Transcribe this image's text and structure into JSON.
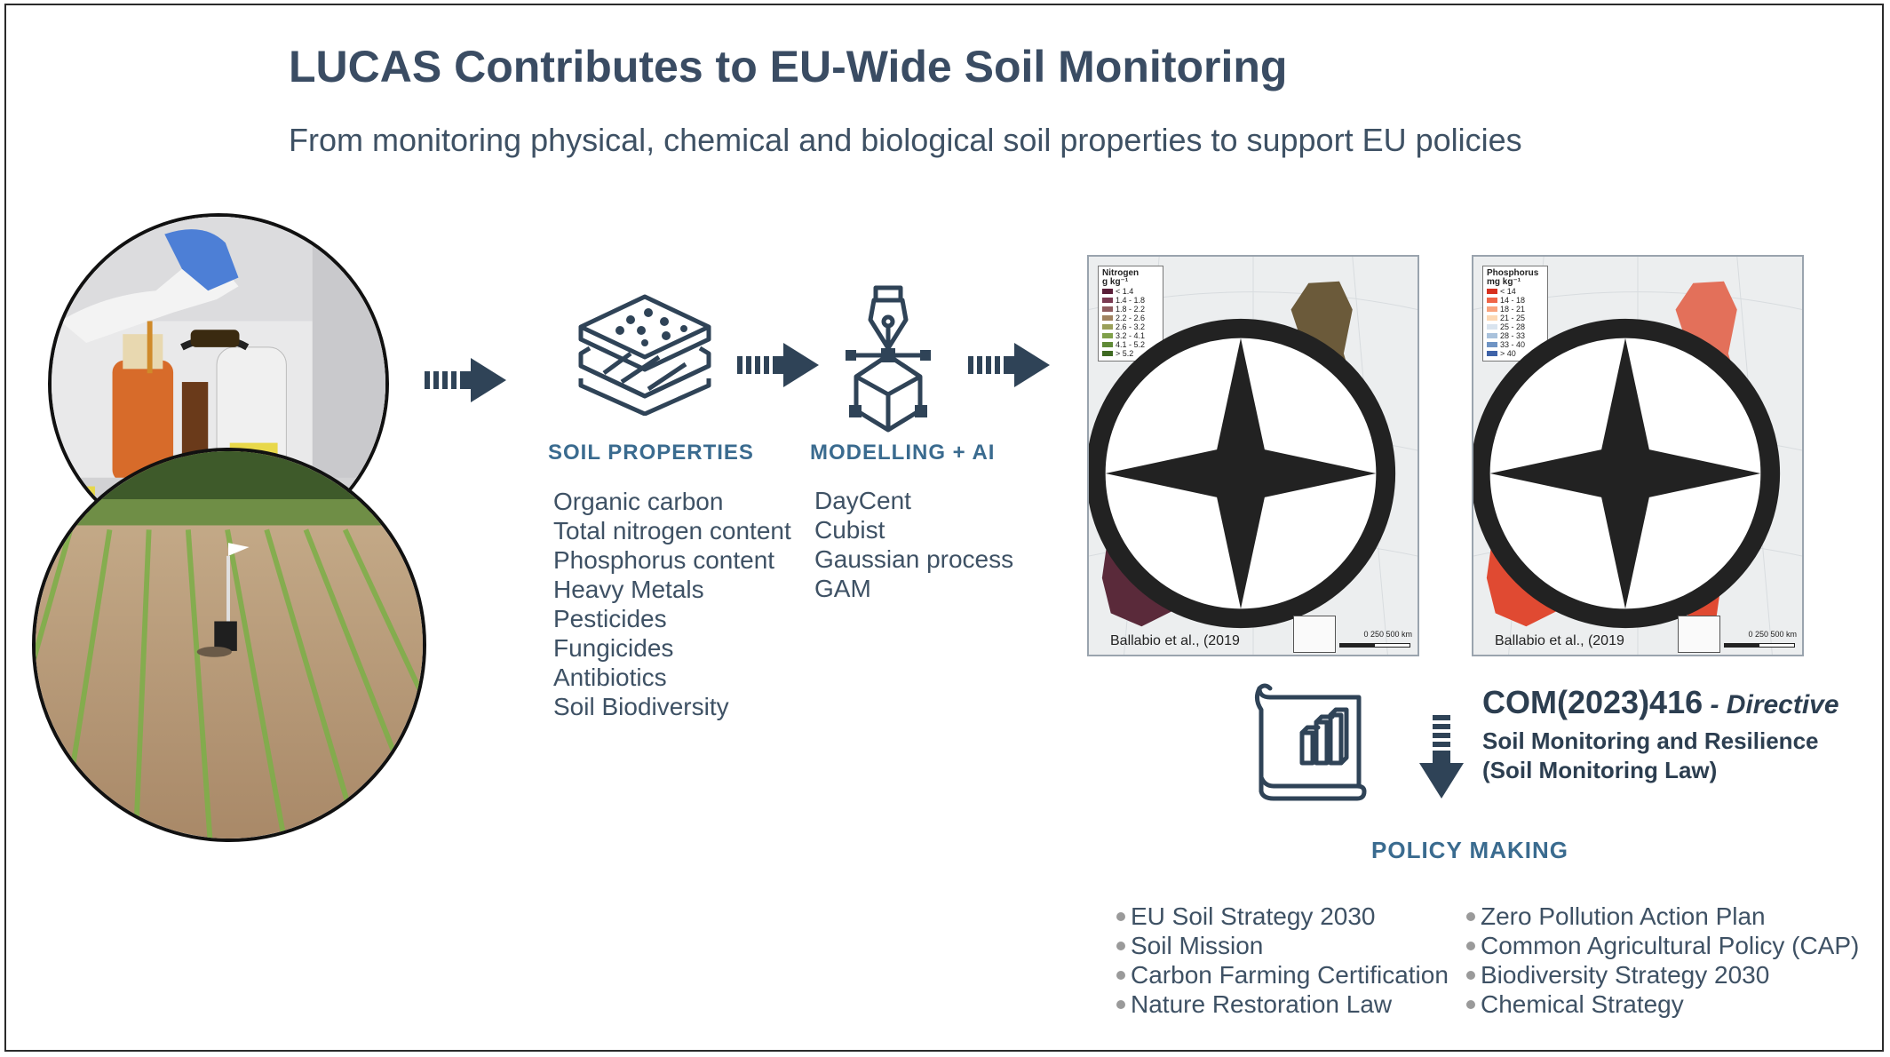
{
  "title": "LUCAS Contributes to EU-Wide Soil Monitoring",
  "subtitle": "From monitoring physical, chemical and biological soil properties to support EU policies",
  "soil_properties": {
    "label": "SOIL PROPERTIES",
    "items": [
      "Organic carbon",
      "Total nitrogen content",
      "Phosphorus content",
      "Heavy Metals",
      "Pesticides",
      "Fungicides",
      "Antibiotics",
      "Soil Biodiversity"
    ]
  },
  "modelling": {
    "label": "MODELLING + AI",
    "items": [
      "DayCent",
      "Cubist",
      "Gaussian process",
      "GAM"
    ]
  },
  "maps": [
    {
      "legend_title": "Nitrogen",
      "legend_unit": "g kg⁻¹",
      "classes": [
        "< 1.4",
        "1.4 - 1.8",
        "1.8 - 2.2",
        "2.2 - 2.6",
        "2.6 - 3.2",
        "3.2 - 4.1",
        "4.1 - 5.2",
        "> 5.2"
      ],
      "colors": [
        "#5a1e38",
        "#7a3a52",
        "#8f5c5f",
        "#a08360",
        "#9aa05a",
        "#7fa04a",
        "#5f8a36",
        "#3f6a22"
      ],
      "credit": "Ballabio et al., (2019",
      "scale_label": "0   250  500 km"
    },
    {
      "legend_title": "Phosphorus",
      "legend_unit": "mg kg⁻¹",
      "classes": [
        "< 14",
        "14 - 18",
        "18 - 21",
        "21 - 25",
        "25 - 28",
        "28 - 33",
        "33 - 40",
        "> 40"
      ],
      "colors": [
        "#d7301f",
        "#ef6548",
        "#f9a47e",
        "#fdd9b5",
        "#d9e4ef",
        "#a9c2dc",
        "#6f94c4",
        "#3f63a8"
      ],
      "credit": "Ballabio et al., (2019",
      "scale_label": "0   250  500 km"
    }
  ],
  "directive": {
    "code": "COM(2023)416",
    "suffix": " - Directive",
    "line1": "Soil Monitoring and Resilience",
    "line2": "(Soil Monitoring Law)"
  },
  "policy": {
    "label": "POLICY MAKING",
    "left": [
      "EU Soil Strategy 2030",
      "Soil Mission",
      "Carbon Farming Certification",
      "Nature Restoration Law"
    ],
    "right": [
      "Zero Pollution Action Plan",
      "Common Agricultural Policy (CAP)",
      "Biodiversity Strategy 2030",
      "Chemical Strategy"
    ]
  },
  "colors": {
    "icon": "#2f4357",
    "label_blue": "#3a6b8f"
  }
}
